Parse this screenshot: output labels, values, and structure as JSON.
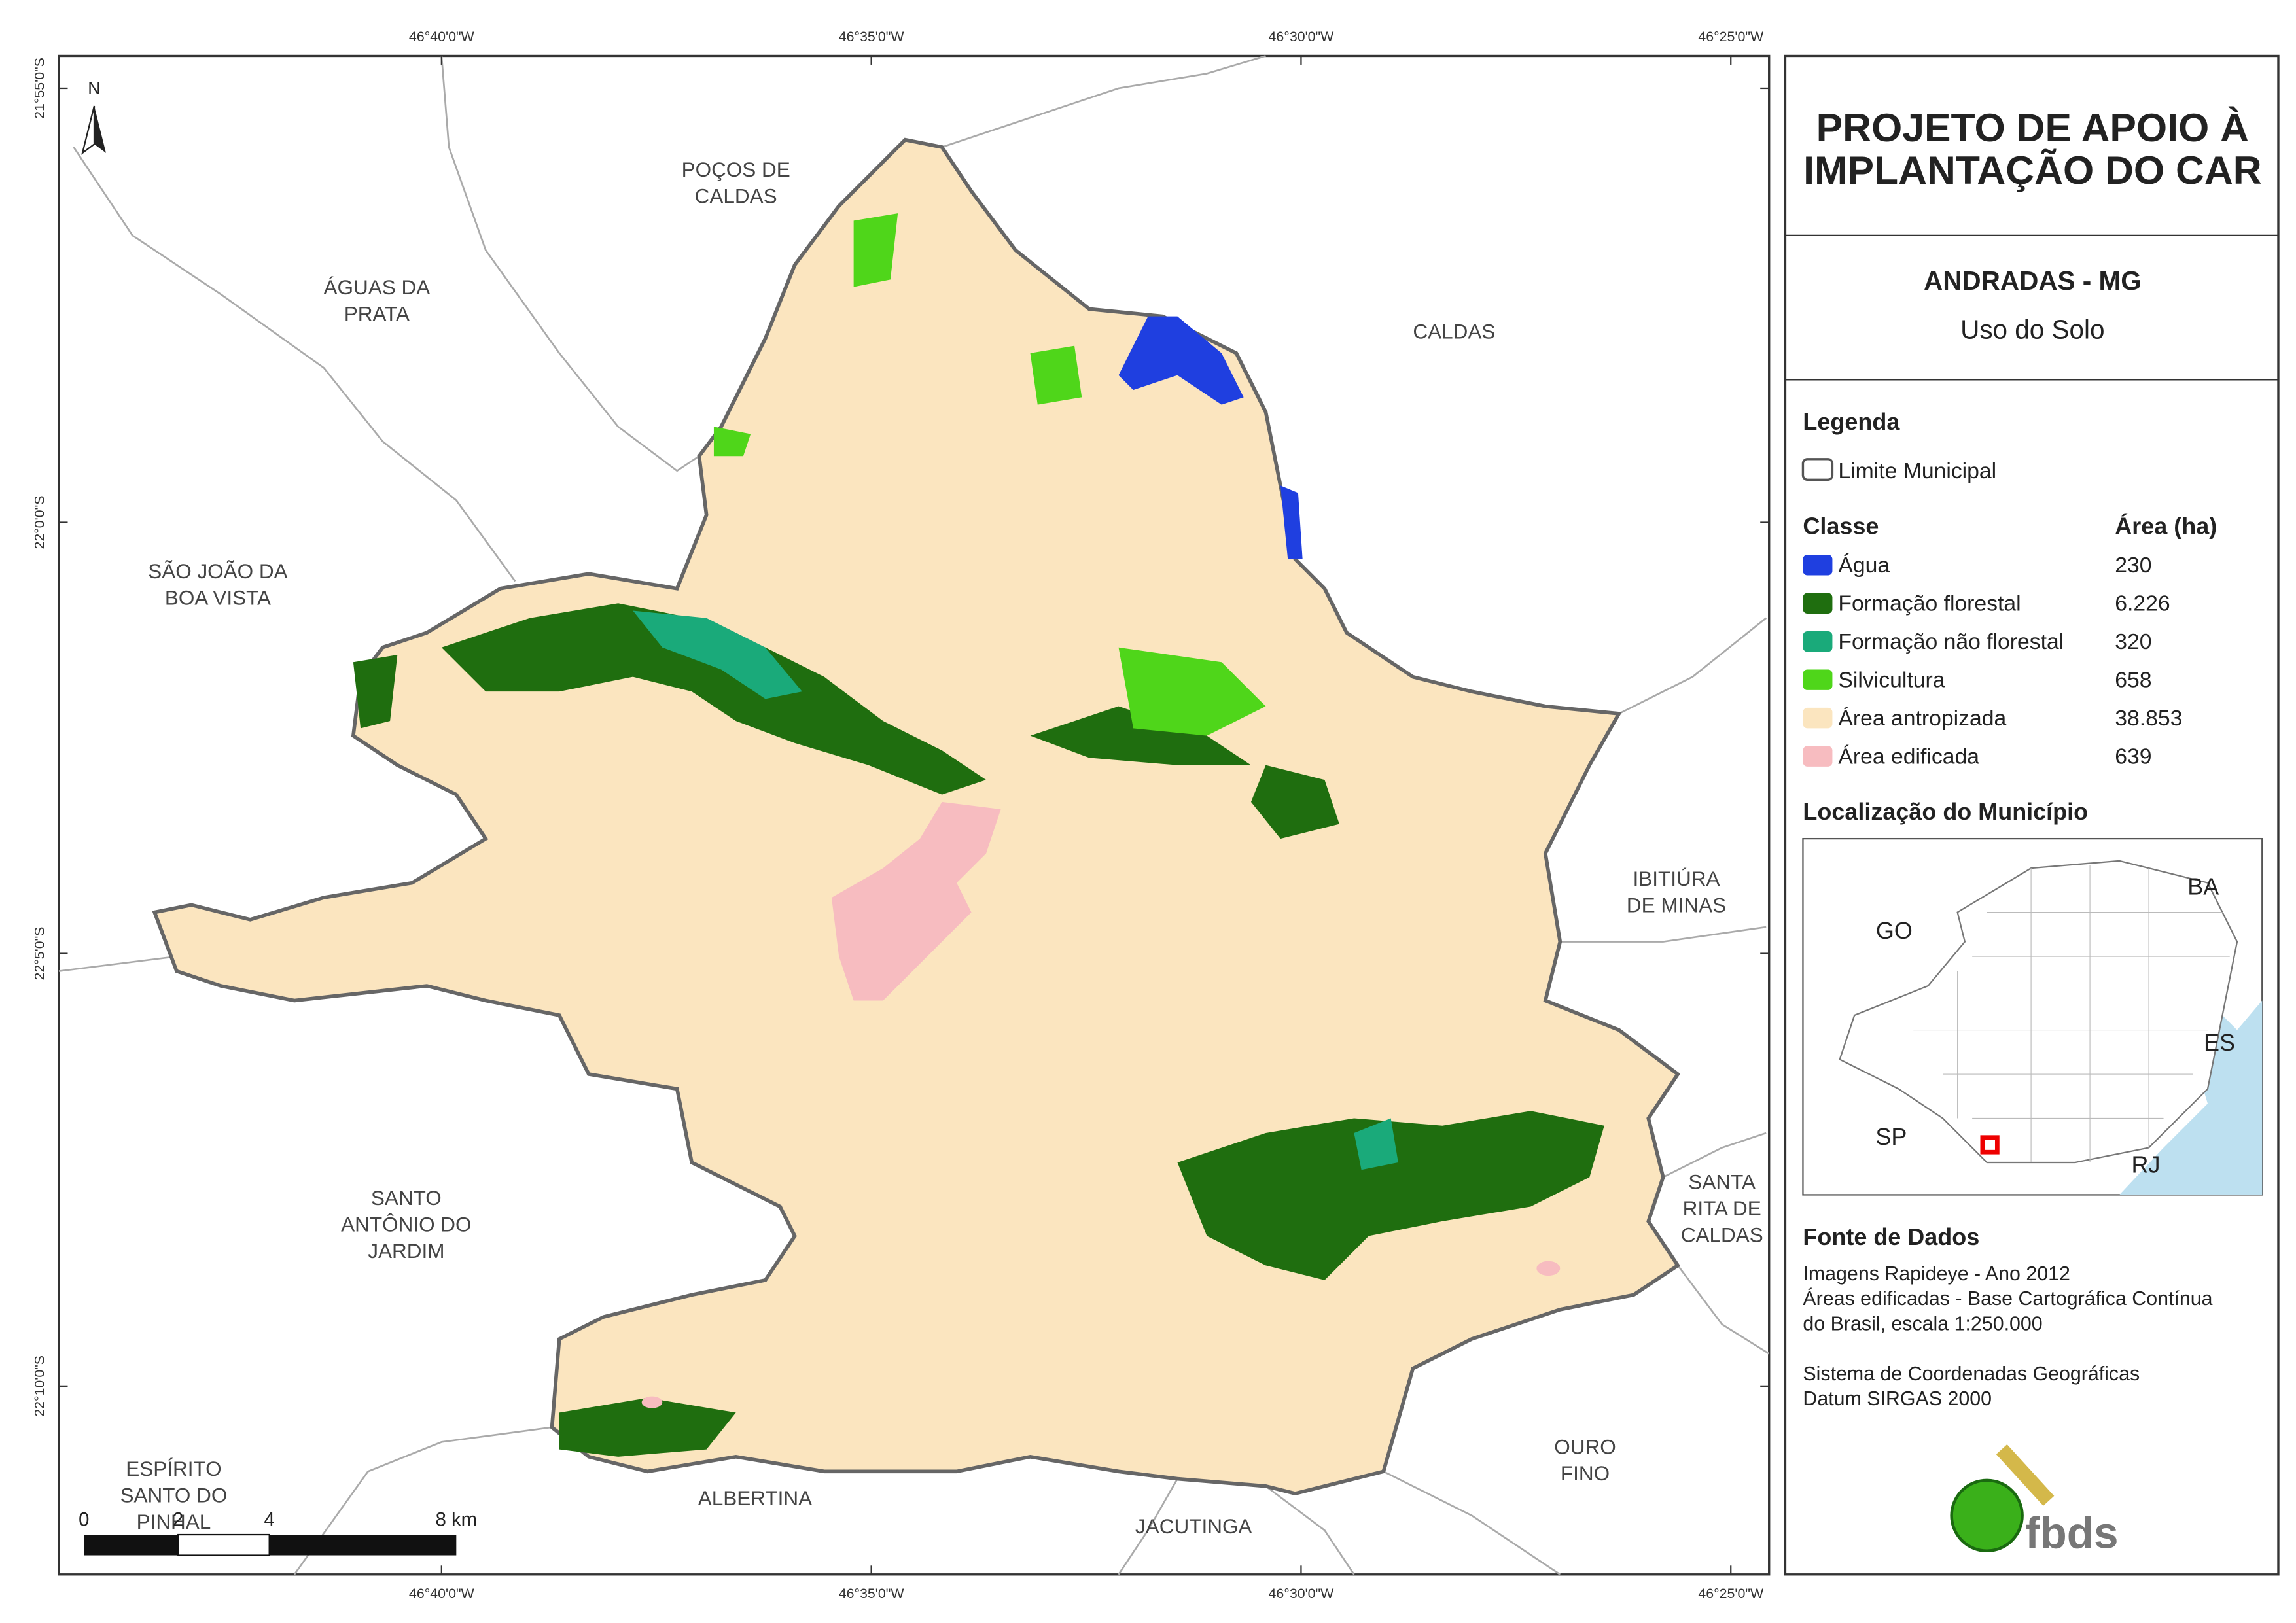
{
  "map": {
    "longitudes": [
      "46°40'0\"W",
      "46°35'0\"W",
      "46°30'0\"W",
      "46°25'0\"W"
    ],
    "latitudes": [
      "21°55'0\"S",
      "22°0'0\"S",
      "22°5'0\"S",
      "22°10'0\"S"
    ],
    "north": "N",
    "neighbors": [
      [
        "POÇOS DE",
        "CALDAS"
      ],
      [
        "ÁGUAS DA",
        "PRATA"
      ],
      [
        "CALDAS"
      ],
      [
        "SÃO JOÃO DA",
        "BOA VISTA"
      ],
      [
        "IBITIÚRA",
        "DE MINAS"
      ],
      [
        "SANTO",
        "ANTÔNIO DO",
        "JARDIM"
      ],
      [
        "SANTA",
        "RITA DE",
        "CALDAS"
      ],
      [
        "ESPÍRITO",
        "SANTO DO",
        "PINHAL"
      ],
      [
        "ALBERTINA"
      ],
      [
        "JACUTINGA"
      ],
      [
        "OURO",
        "FINO"
      ]
    ],
    "scale_bar": [
      "0",
      "2",
      "4",
      "8 km"
    ]
  },
  "panel": {
    "title": [
      "PROJETO DE APOIO À",
      "IMPLANTAÇÃO DO CAR"
    ],
    "municipality": "ANDRADAS - MG",
    "theme": "Uso do Solo",
    "legend": {
      "title": "Legenda",
      "boundary": "Limite Municipal",
      "class_header": "Classe",
      "area_header": "Área (ha)",
      "classes": [
        {
          "name": "Água",
          "color": "#1f3fe0",
          "area": "230"
        },
        {
          "name": "Formação florestal",
          "color": "#1f6e0f",
          "area": "6.226"
        },
        {
          "name": "Formação não florestal",
          "color": "#1aaa7a",
          "area": "320"
        },
        {
          "name": "Silvicultura",
          "color": "#4fd61a",
          "area": "658"
        },
        {
          "name": "Área antropizada",
          "color": "#fbe5bf",
          "area": "38.853"
        },
        {
          "name": "Área edificada",
          "color": "#f7bcc0",
          "area": "639"
        }
      ]
    },
    "location": {
      "title": "Localização do Município",
      "labels": [
        "GO",
        "BA",
        "ES",
        "SP",
        "RJ"
      ]
    },
    "sources": {
      "title": "Fonte de Dados",
      "lines": [
        "Imagens Rapideye - Ano 2012",
        "Áreas edificadas - Base Cartográfica Contínua",
        "do Brasil, escala 1:250.000",
        "",
        "Sistema de Coordenadas Geográficas",
        "Datum SIRGAS 2000"
      ]
    },
    "logo": "fbds"
  }
}
